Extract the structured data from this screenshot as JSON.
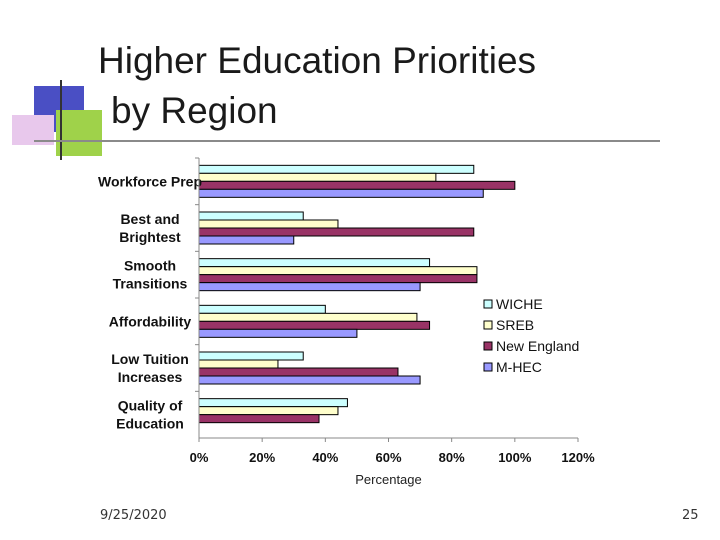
{
  "slide": {
    "title_line1": "Higher Education Priorities",
    "title_line2": "by Region",
    "date": "9/25/2020",
    "page_number": "25"
  },
  "colors": {
    "deco_blue": "#4a4fc4",
    "deco_green": "#9fd24a",
    "deco_pink": "#e8c8ec",
    "WICHE": "#ccffff",
    "SREB": "#ffffcc",
    "New England": "#993366",
    "M-HEC": "#9999ff"
  },
  "chart_data": {
    "type": "bar",
    "orientation": "horizontal",
    "title": "",
    "xlabel": "Percentage",
    "ylabel": "",
    "xlim": [
      0,
      1.2
    ],
    "x_ticks": [
      "0%",
      "20%",
      "40%",
      "60%",
      "80%",
      "100%",
      "120%"
    ],
    "categories": [
      [
        "Workforce Prep"
      ],
      [
        "Best and",
        "Brightest"
      ],
      [
        "Smooth",
        "Transitions"
      ],
      [
        "Affordability"
      ],
      [
        "Low Tuition",
        "Increases"
      ],
      [
        "Quality of",
        "Education"
      ]
    ],
    "series": [
      {
        "name": "WICHE",
        "values": [
          0.87,
          0.33,
          0.73,
          0.4,
          0.33,
          0.47
        ]
      },
      {
        "name": "SREB",
        "values": [
          0.75,
          0.44,
          0.88,
          0.69,
          0.25,
          0.44
        ]
      },
      {
        "name": "New England",
        "values": [
          1.0,
          0.87,
          0.88,
          0.73,
          0.63,
          0.38
        ]
      },
      {
        "name": "M-HEC",
        "values": [
          0.9,
          0.3,
          0.7,
          0.5,
          0.7,
          null
        ]
      }
    ],
    "legend_position": "right",
    "grid": false
  }
}
